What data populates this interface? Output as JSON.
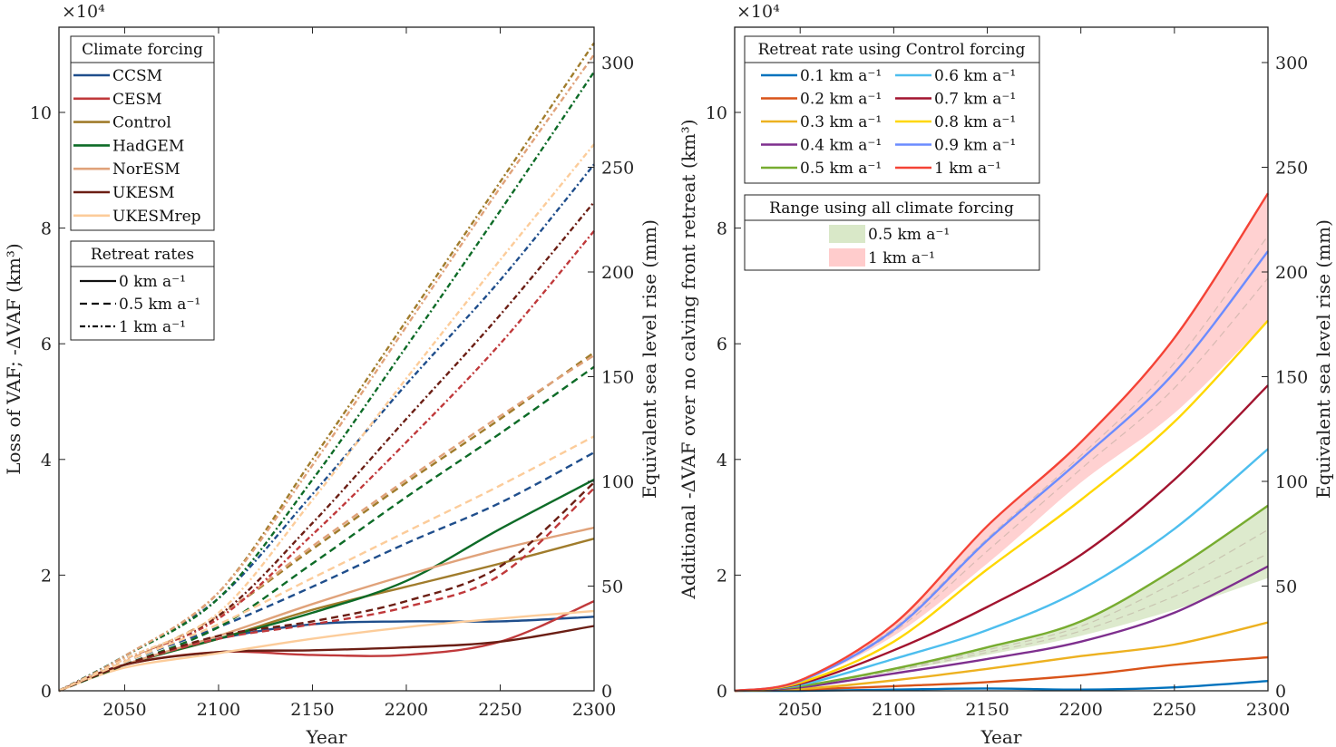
{
  "chart_data": [
    {
      "type": "line",
      "panel": "left",
      "title": "",
      "xlabel": "Year",
      "ylabel": "Loss of VAF; -ΔVAF (km³)",
      "ylabel_right": "Equivalent sea level rise (mm)",
      "y_multiplier": "×10⁴",
      "xlim": [
        2015,
        2300
      ],
      "ylim": [
        0,
        11.5
      ],
      "ylim_right_mm": [
        0,
        317
      ],
      "x_ticks": [
        2050,
        2100,
        2150,
        2200,
        2250,
        2300
      ],
      "y_ticks": [
        0,
        2,
        4,
        6,
        8,
        10
      ],
      "y_ticks_right": [
        0,
        50,
        100,
        150,
        200,
        250,
        300
      ],
      "grid": false,
      "x": [
        2015,
        2050,
        2100,
        2150,
        2200,
        2250,
        2300
      ],
      "legend_forcing": {
        "title": "Climate forcing",
        "placement": "top-left",
        "entries": [
          {
            "name": "CCSM",
            "color": "#1f4e8c"
          },
          {
            "name": "CESM",
            "color": "#c0393b"
          },
          {
            "name": "Control",
            "color": "#a07c2c"
          },
          {
            "name": "HadGEM",
            "color": "#0d6b27"
          },
          {
            "name": "NorESM",
            "color": "#e0a27a"
          },
          {
            "name": "UKESM",
            "color": "#6b1e14"
          },
          {
            "name": "UKESMrep",
            "color": "#fccc9a"
          }
        ]
      },
      "legend_rates": {
        "title": "Retreat rates",
        "placement": "upper-left",
        "entries": [
          {
            "label": "0 km a⁻¹",
            "style": "solid"
          },
          {
            "label": "0.5 km a⁻¹",
            "style": "dashed"
          },
          {
            "label": "1 km a⁻¹",
            "style": "dashdot"
          }
        ]
      },
      "series": [
        {
          "name": "CCSM",
          "rate": "0",
          "style": "solid",
          "color": "#1f4e8c",
          "values": [
            0,
            0.45,
            0.9,
            1.15,
            1.2,
            1.2,
            1.28
          ]
        },
        {
          "name": "CESM",
          "rate": "0",
          "style": "solid",
          "color": "#c0393b",
          "values": [
            0,
            0.45,
            0.67,
            0.62,
            0.62,
            0.85,
            1.55
          ]
        },
        {
          "name": "Control",
          "rate": "0",
          "style": "solid",
          "color": "#a07c2c",
          "values": [
            0,
            0.45,
            0.9,
            1.4,
            1.8,
            2.2,
            2.63
          ]
        },
        {
          "name": "HadGEM",
          "rate": "0",
          "style": "solid",
          "color": "#0d6b27",
          "values": [
            0,
            0.45,
            0.9,
            1.35,
            1.9,
            2.8,
            3.65
          ]
        },
        {
          "name": "NorESM",
          "rate": "0",
          "style": "solid",
          "color": "#e0a27a",
          "values": [
            0,
            0.45,
            0.95,
            1.5,
            2.0,
            2.45,
            2.82
          ]
        },
        {
          "name": "UKESM",
          "rate": "0",
          "style": "solid",
          "color": "#6b1e14",
          "values": [
            0,
            0.45,
            0.67,
            0.7,
            0.75,
            0.85,
            1.12
          ]
        },
        {
          "name": "UKESMrep",
          "rate": "0",
          "style": "solid",
          "color": "#fccc9a",
          "values": [
            0,
            0.4,
            0.65,
            0.9,
            1.1,
            1.25,
            1.38
          ]
        },
        {
          "name": "CCSM",
          "rate": "0.5",
          "style": "dashed",
          "color": "#1f4e8c",
          "values": [
            0,
            0.5,
            1.1,
            1.8,
            2.55,
            3.25,
            4.12
          ]
        },
        {
          "name": "CESM",
          "rate": "0.5",
          "style": "dashed",
          "color": "#c0393b",
          "values": [
            0,
            0.45,
            0.9,
            1.15,
            1.45,
            2.0,
            3.5
          ]
        },
        {
          "name": "Control",
          "rate": "0.5",
          "style": "dashed",
          "color": "#a07c2c",
          "values": [
            0,
            0.5,
            1.3,
            2.45,
            3.6,
            4.7,
            5.85
          ]
        },
        {
          "name": "HadGEM",
          "rate": "0.5",
          "style": "dashed",
          "color": "#0d6b27",
          "values": [
            0,
            0.45,
            1.1,
            2.2,
            3.35,
            4.45,
            5.6
          ]
        },
        {
          "name": "NorESM",
          "rate": "0.5",
          "style": "dashed",
          "color": "#e0a27a",
          "values": [
            0,
            0.5,
            1.3,
            2.5,
            3.65,
            4.75,
            5.8
          ]
        },
        {
          "name": "UKESM",
          "rate": "0.5",
          "style": "dashed",
          "color": "#6b1e14",
          "values": [
            0,
            0.45,
            0.95,
            1.2,
            1.55,
            2.15,
            3.6
          ]
        },
        {
          "name": "UKESMrep",
          "rate": "0.5",
          "style": "dashed",
          "color": "#fccc9a",
          "values": [
            0,
            0.5,
            1.15,
            1.95,
            2.75,
            3.55,
            4.4
          ]
        },
        {
          "name": "CCSM",
          "rate": "1",
          "style": "dashdot",
          "color": "#1f4e8c",
          "values": [
            0,
            0.6,
            1.6,
            3.4,
            5.3,
            7.1,
            9.1
          ]
        },
        {
          "name": "CESM",
          "rate": "1",
          "style": "dashdot",
          "color": "#c0393b",
          "values": [
            0,
            0.55,
            1.25,
            2.7,
            4.3,
            6.0,
            7.95
          ]
        },
        {
          "name": "Control",
          "rate": "1",
          "style": "dashdot",
          "color": "#a07c2c",
          "values": [
            0,
            0.6,
            1.7,
            4.0,
            6.4,
            8.8,
            11.2
          ]
        },
        {
          "name": "HadGEM",
          "rate": "1",
          "style": "dashdot",
          "color": "#0d6b27",
          "values": [
            0,
            0.6,
            1.6,
            3.65,
            5.95,
            8.3,
            10.7
          ]
        },
        {
          "name": "NorESM",
          "rate": "1",
          "style": "dashdot",
          "color": "#e0a27a",
          "values": [
            0,
            0.6,
            1.7,
            3.9,
            6.3,
            8.7,
            11.0
          ]
        },
        {
          "name": "UKESM",
          "rate": "1",
          "style": "dashdot",
          "color": "#6b1e14",
          "values": [
            0,
            0.55,
            1.3,
            2.9,
            4.7,
            6.5,
            8.45
          ]
        },
        {
          "name": "UKESMrep",
          "rate": "1",
          "style": "dashdot",
          "color": "#fccc9a",
          "values": [
            0,
            0.55,
            1.35,
            3.3,
            5.4,
            7.45,
            9.45
          ]
        }
      ]
    },
    {
      "type": "line",
      "panel": "right",
      "title": "",
      "xlabel": "Year",
      "ylabel": "Additional -ΔVAF over no calving front retreat (km³)",
      "ylabel_right": "Equivalent sea level rise (mm)",
      "y_multiplier": "×10⁴",
      "xlim": [
        2015,
        2300
      ],
      "ylim": [
        0,
        11.5
      ],
      "ylim_right_mm": [
        0,
        317
      ],
      "x_ticks": [
        2050,
        2100,
        2150,
        2200,
        2250,
        2300
      ],
      "y_ticks": [
        0,
        2,
        4,
        6,
        8,
        10
      ],
      "y_ticks_right": [
        0,
        50,
        100,
        150,
        200,
        250,
        300
      ],
      "grid": false,
      "x": [
        2015,
        2050,
        2100,
        2150,
        2200,
        2250,
        2300
      ],
      "legend_control": {
        "title": "Retreat rate using Control forcing",
        "placement": "top-left"
      },
      "legend_range": {
        "title": "Range using all climate forcing",
        "placement": "upper-left",
        "entries": [
          {
            "label": "0.5 km a⁻¹",
            "color": "#d9e8c8"
          },
          {
            "label": "1 km a⁻¹",
            "color": "#ffcccc"
          }
        ]
      },
      "bands": [
        {
          "name": "0.5 km a⁻¹ range",
          "color": "#d9e8c8",
          "low": [
            0,
            0.07,
            0.33,
            0.62,
            0.95,
            1.4,
            1.95
          ],
          "high": [
            0,
            0.08,
            0.38,
            0.75,
            1.2,
            2.1,
            3.2
          ]
        },
        {
          "name": "1 km a⁻¹ range",
          "color": "#ffcccc",
          "low": [
            0,
            0.16,
            0.95,
            2.2,
            3.6,
            4.8,
            6.4
          ],
          "high": [
            0,
            0.18,
            1.15,
            2.85,
            4.3,
            6.1,
            8.6
          ]
        }
      ],
      "series": [
        {
          "name": "0.1 km a⁻¹",
          "color": "#0072bd",
          "values": [
            0,
            0,
            0.02,
            0.04,
            0.02,
            0.06,
            0.17
          ]
        },
        {
          "name": "0.2 km a⁻¹",
          "color": "#d95319",
          "values": [
            0,
            0.02,
            0.08,
            0.15,
            0.27,
            0.45,
            0.58
          ]
        },
        {
          "name": "0.3 km a⁻¹",
          "color": "#edb120",
          "values": [
            0,
            0.03,
            0.18,
            0.38,
            0.6,
            0.8,
            1.18
          ]
        },
        {
          "name": "0.4 km a⁻¹",
          "color": "#7e2f8e",
          "values": [
            0,
            0.06,
            0.3,
            0.55,
            0.85,
            1.35,
            2.15
          ]
        },
        {
          "name": "0.5 km a⁻¹",
          "color": "#77ac30",
          "values": [
            0,
            0.08,
            0.38,
            0.75,
            1.2,
            2.1,
            3.2
          ]
        },
        {
          "name": "0.6 km a⁻¹",
          "color": "#4dbeee",
          "values": [
            0,
            0.1,
            0.55,
            1.05,
            1.75,
            2.8,
            4.18
          ]
        },
        {
          "name": "0.7 km a⁻¹",
          "color": "#a2142f",
          "values": [
            0,
            0.12,
            0.7,
            1.45,
            2.35,
            3.65,
            5.28
          ]
        },
        {
          "name": "0.8 km a⁻¹",
          "color": "#ffd700",
          "values": [
            0,
            0.14,
            0.85,
            2.1,
            3.3,
            4.65,
            6.4
          ]
        },
        {
          "name": "0.9 km a⁻¹",
          "color": "#6b8cff",
          "values": [
            0,
            0.17,
            1.05,
            2.6,
            4.0,
            5.5,
            7.6
          ]
        },
        {
          "name": "1 km a⁻¹",
          "color": "#f44336",
          "values": [
            0,
            0.18,
            1.15,
            2.85,
            4.3,
            6.1,
            8.6
          ]
        }
      ]
    }
  ]
}
